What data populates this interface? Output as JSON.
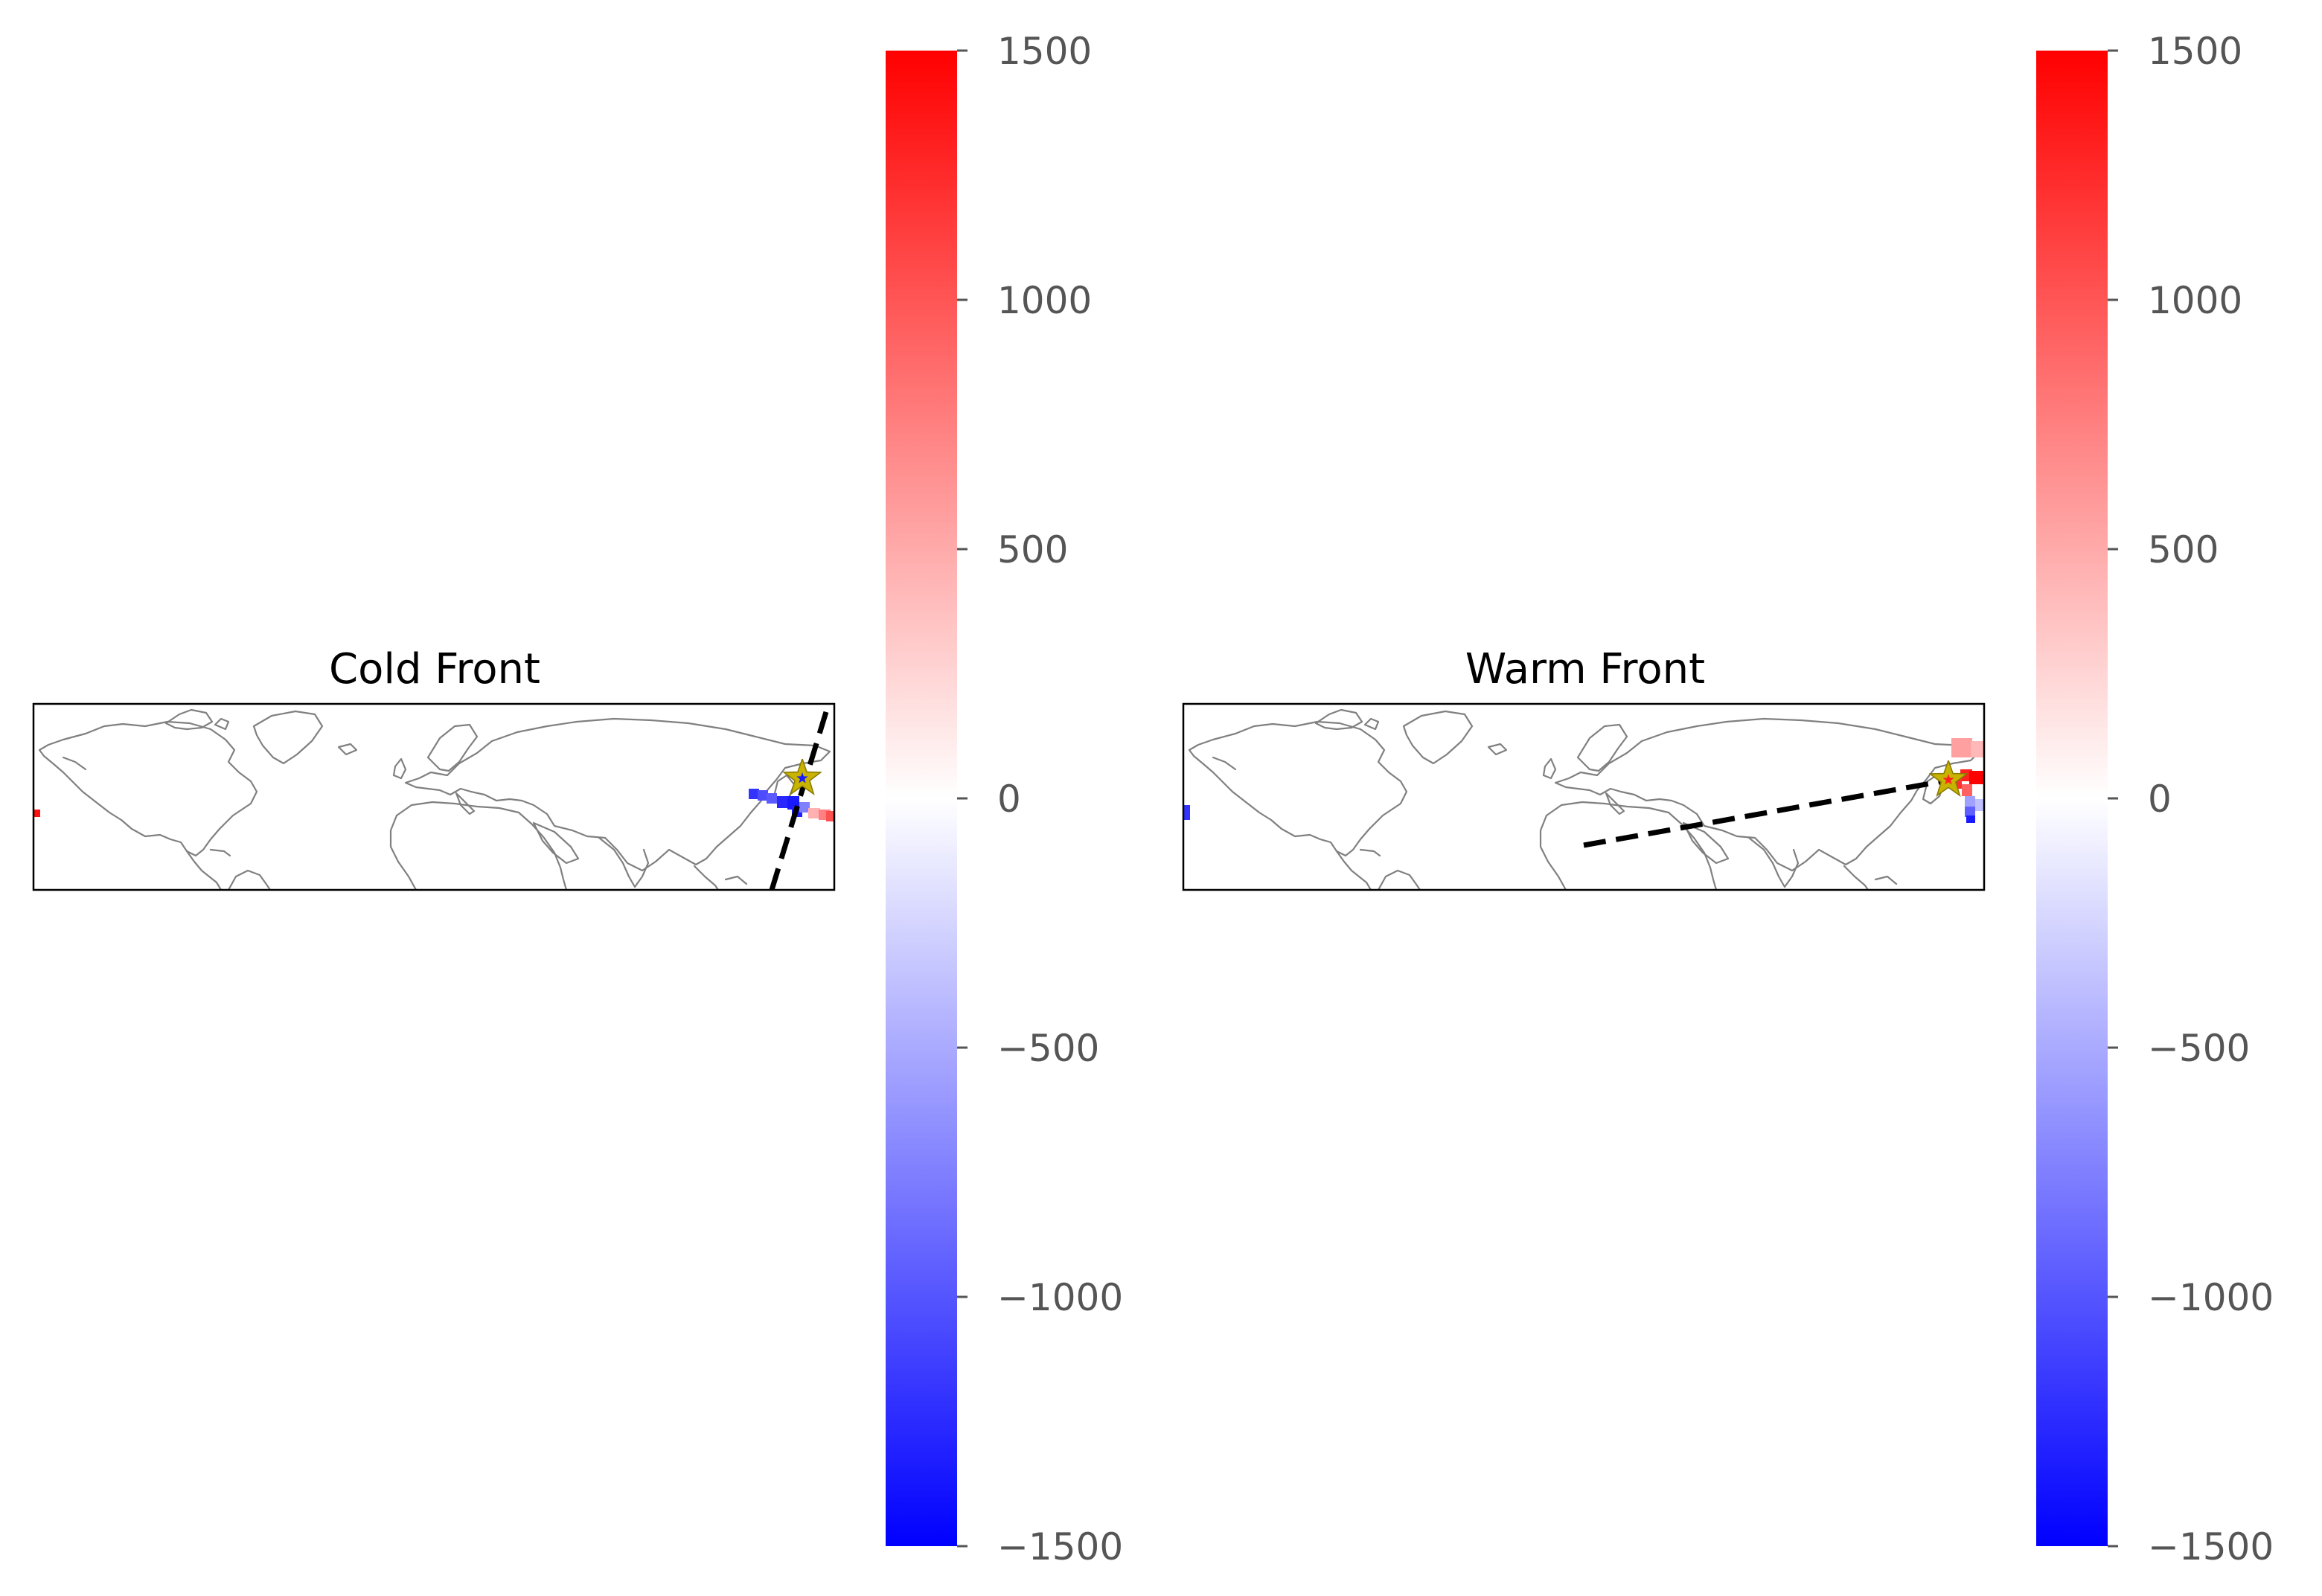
{
  "figure": {
    "panels": [
      {
        "id": "cold",
        "title": "Cold Front",
        "front_angle_deg": 70,
        "line_colour": "#000000",
        "centre_marker": {
          "shape": "star",
          "fill": "#c8b400",
          "inner": "#1a1aff"
        },
        "anomaly_colour_example": "blue/red squares along the front"
      },
      {
        "id": "warm",
        "title": "Warm Front",
        "front_angle_deg": 12,
        "line_colour": "#000000",
        "centre_marker": {
          "shape": "star",
          "fill": "#c8b400",
          "inner": "#ff2020"
        },
        "anomaly_colour_example": "red/blue squares along the front"
      }
    ],
    "colorbar": {
      "min": -1500,
      "max": 1500,
      "colormap": "bwr",
      "colors": [
        "#0000ff",
        "#ffffff",
        "#ff0000"
      ],
      "ticks": [
        1500,
        1000,
        500,
        0,
        -500,
        -1000,
        -1500
      ],
      "tick_labels": [
        "1500",
        "1000",
        "500",
        "0",
        "−500",
        "−1000",
        "−1500"
      ]
    },
    "coastline_colour": "#808080"
  }
}
